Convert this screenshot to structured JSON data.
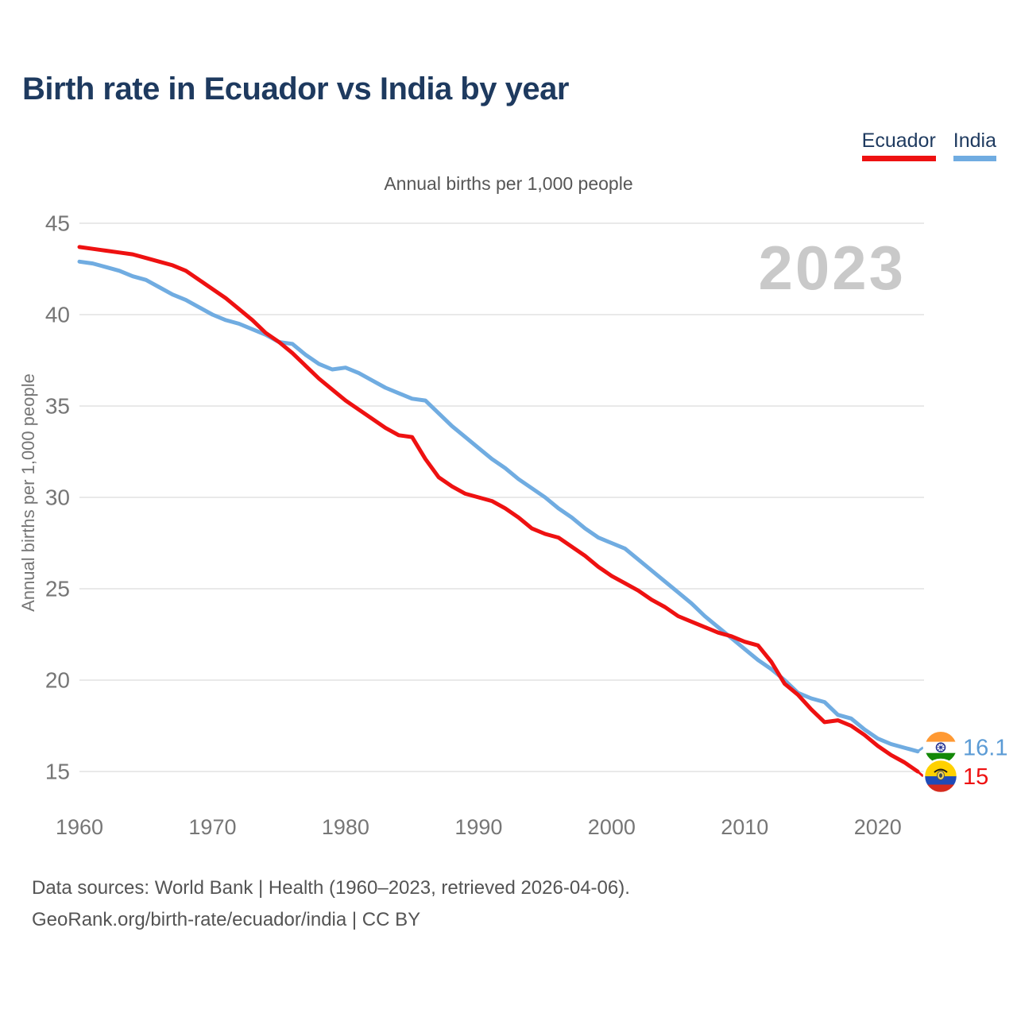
{
  "header": {
    "title": "Birth rate in Ecuador vs India by year"
  },
  "legend": [
    {
      "label": "Ecuador",
      "color": "#ee1111"
    },
    {
      "label": "India",
      "color": "#70ace1"
    }
  ],
  "subtitle": "Annual births per 1,000 people",
  "watermark": "2023",
  "end_labels": [
    {
      "series": "India",
      "value": "16.1",
      "flag": "india-flag",
      "color": "#5b9bd5"
    },
    {
      "series": "Ecuador",
      "value": "15",
      "flag": "ecuador-flag",
      "color": "#ee1111"
    }
  ],
  "footer": {
    "line1": "Data sources: World Bank | Health (1960–2023, retrieved 2026-04-06).",
    "line2": "GeoRank.org/birth-rate/ecuador/india | CC BY"
  },
  "colors": {
    "ecuador_line": "#ee1111",
    "india_line": "#70ace1",
    "title_text": "#1e3a5f",
    "axis_text": "#767676",
    "gridline": "#e9e9e9",
    "watermark_text": "#c9c9c9"
  },
  "chart_data": {
    "type": "line",
    "title": "Annual births per 1,000 people",
    "xlabel": "",
    "ylabel": "Annual births per 1,000 people",
    "grid": true,
    "legend_position": "top-right",
    "xlim": [
      1960,
      2023
    ],
    "ylim": [
      13.5,
      46
    ],
    "xticks": [
      1960,
      1970,
      1980,
      1990,
      2000,
      2010,
      2020
    ],
    "yticks": [
      15,
      20,
      25,
      30,
      35,
      40,
      45
    ],
    "x": [
      1960,
      1961,
      1962,
      1963,
      1964,
      1965,
      1966,
      1967,
      1968,
      1969,
      1970,
      1971,
      1972,
      1973,
      1974,
      1975,
      1976,
      1977,
      1978,
      1979,
      1980,
      1981,
      1982,
      1983,
      1984,
      1985,
      1986,
      1987,
      1988,
      1989,
      1990,
      1991,
      1992,
      1993,
      1994,
      1995,
      1996,
      1997,
      1998,
      1999,
      2000,
      2001,
      2002,
      2003,
      2004,
      2005,
      2006,
      2007,
      2008,
      2009,
      2010,
      2011,
      2012,
      2013,
      2014,
      2015,
      2016,
      2017,
      2018,
      2019,
      2020,
      2021,
      2022,
      2023
    ],
    "series": [
      {
        "name": "India",
        "color": "#70ace1",
        "values": [
          42.9,
          42.8,
          42.6,
          42.4,
          42.1,
          41.9,
          41.5,
          41.1,
          40.8,
          40.4,
          40.0,
          39.7,
          39.5,
          39.2,
          38.9,
          38.5,
          38.4,
          37.8,
          37.3,
          37.0,
          37.1,
          36.8,
          36.4,
          36.0,
          35.7,
          35.4,
          35.3,
          34.6,
          33.9,
          33.3,
          32.7,
          32.1,
          31.6,
          31.0,
          30.5,
          30.0,
          29.4,
          28.9,
          28.3,
          27.8,
          27.5,
          27.2,
          26.6,
          26.0,
          25.4,
          24.8,
          24.2,
          23.5,
          22.9,
          22.3,
          21.7,
          21.1,
          20.6,
          20.0,
          19.3,
          19.0,
          18.8,
          18.1,
          17.9,
          17.3,
          16.8,
          16.5,
          16.3,
          16.1
        ]
      },
      {
        "name": "Ecuador",
        "color": "#ee1111",
        "values": [
          43.7,
          43.6,
          43.5,
          43.4,
          43.3,
          43.1,
          42.9,
          42.7,
          42.4,
          41.9,
          41.4,
          40.9,
          40.3,
          39.7,
          39.0,
          38.5,
          37.9,
          37.2,
          36.5,
          35.9,
          35.3,
          34.8,
          34.3,
          33.8,
          33.4,
          33.3,
          32.1,
          31.1,
          30.6,
          30.2,
          30.0,
          29.8,
          29.4,
          28.9,
          28.3,
          28.0,
          27.8,
          27.3,
          26.8,
          26.2,
          25.7,
          25.3,
          24.9,
          24.4,
          24.0,
          23.5,
          23.2,
          22.9,
          22.6,
          22.4,
          22.1,
          21.9,
          21.0,
          19.8,
          19.2,
          18.4,
          17.7,
          17.8,
          17.5,
          17.0,
          16.4,
          15.9,
          15.5,
          15.0
        ]
      }
    ]
  }
}
